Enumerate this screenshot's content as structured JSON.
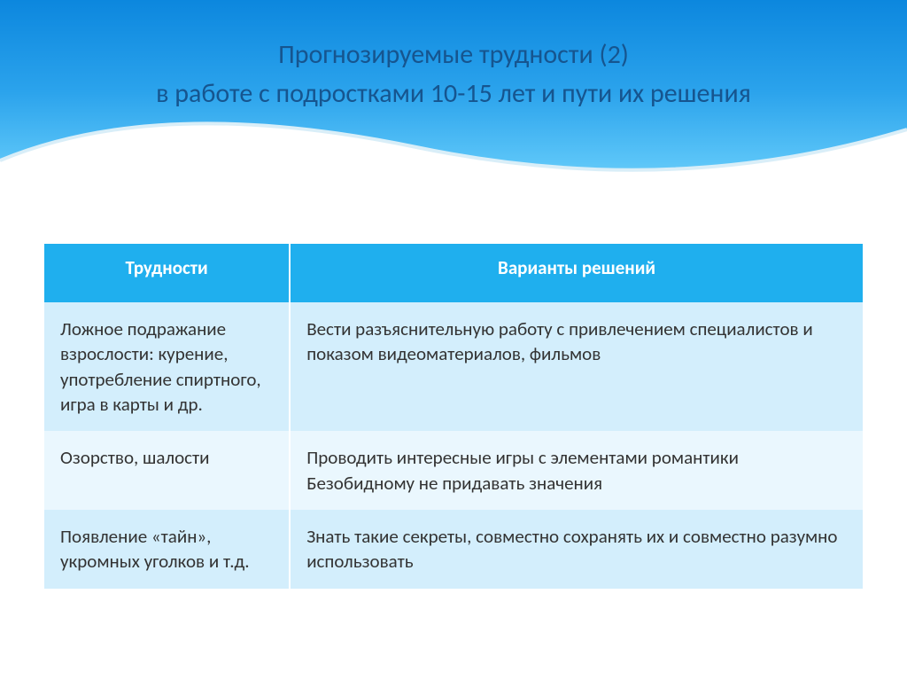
{
  "title": {
    "line1": "Прогнозируемые трудности (2)",
    "line2": "в работе с подростками 10-15 лет и пути их решения"
  },
  "table": {
    "headers": {
      "col1": "Трудности",
      "col2": "Варианты решений"
    },
    "rows": [
      {
        "c1": "Ложное подражание взрослости: курение, употребление спиртного, игра в карты и др.",
        "c2": "Вести разъяснительную работу с привлечением специалистов и показом видеоматериалов, фильмов"
      },
      {
        "c1": "Озорство, шалости",
        "c2": "Проводить интересные  игры с элементами романтики\nБезобидному не придавать значения"
      },
      {
        "c1": "Появление «тайн», укромных уголков и т.д.",
        "c2": "Знать такие секреты, совместно сохранять их и совместно разумно использовать"
      }
    ]
  },
  "style": {
    "sky_gradient": [
      "#0c87de",
      "#2ba3ec",
      "#5bc5f8",
      "#8dd9fb"
    ],
    "title_color": "#16558f",
    "title_fontsize": 30,
    "header_bg": "#1fafee",
    "header_color": "#ffffff",
    "row_bg_odd": "#d3eefc",
    "row_bg_even": "#eaf7fe",
    "cell_fontsize": 21,
    "cell_color": "#333333",
    "col1_width": "30%",
    "col2_width": "70%"
  }
}
